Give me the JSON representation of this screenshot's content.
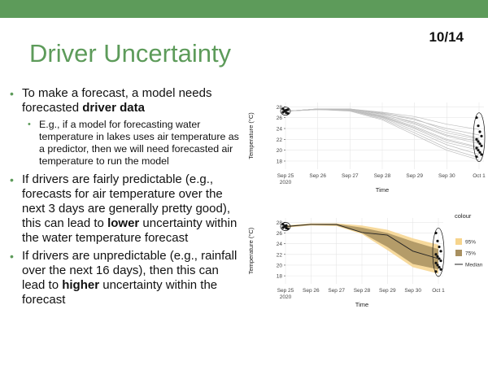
{
  "slide": {
    "number": "10/14",
    "title": "Driver Uncertainty",
    "accent_color": "#5d9b5a"
  },
  "bullets": {
    "b1": {
      "pre": "To make a forecast, a model needs forecasted ",
      "bold": "driver data",
      "post": ""
    },
    "b1a": "E.g., if a model for forecasting water temperature in lakes uses air temperature as a predictor, then we will need forecasted air temperature to run the model",
    "b2": {
      "pre": "If drivers are fairly predictable (e.g., forecasts for air temperature over the next 3 days are generally pretty good), this can lead to ",
      "bold": "lower",
      "post": " uncertainty within the water temperature forecast"
    },
    "b3": {
      "pre": "If drivers are unpredictable (e.g., rainfall over the next 16 days), then this can lead to ",
      "bold": "higher",
      "post": " uncertainty within the forecast"
    }
  },
  "chart_data": [
    {
      "type": "line",
      "description_series": "ensemble",
      "x_tick_labels": [
        "Sep 25",
        "Sep 26",
        "Sep 27",
        "Sep 28",
        "Sep 29",
        "Sep 30",
        "Oct 1"
      ],
      "x_year_label": "2020",
      "xlabel": "Time",
      "ylabel": "Temperature (°C)",
      "y_ticks": [
        18,
        20,
        22,
        24,
        26,
        28
      ],
      "ylim": [
        16.5,
        28.8
      ],
      "x": [
        0,
        1,
        2,
        3,
        4,
        5,
        6
      ],
      "members": [
        [
          27.2,
          27.6,
          27.6,
          27.0,
          26.2,
          24.8,
          23.8
        ],
        [
          27.2,
          27.6,
          27.6,
          26.8,
          25.6,
          24.0,
          22.8
        ],
        [
          27.2,
          27.6,
          27.5,
          26.6,
          25.2,
          23.2,
          22.0
        ],
        [
          27.2,
          27.6,
          27.5,
          26.4,
          24.8,
          22.6,
          21.2
        ],
        [
          27.2,
          27.6,
          27.4,
          26.3,
          24.4,
          22.0,
          20.6
        ],
        [
          27.2,
          27.5,
          27.4,
          26.1,
          24.0,
          21.4,
          20.0
        ],
        [
          27.2,
          27.5,
          27.3,
          26.0,
          23.6,
          21.0,
          19.2
        ],
        [
          27.2,
          27.5,
          27.3,
          25.8,
          23.2,
          20.4,
          18.6
        ],
        [
          27.2,
          27.5,
          27.2,
          25.6,
          22.8,
          20.0,
          18.2
        ],
        [
          27.2,
          27.6,
          27.6,
          26.9,
          25.8,
          23.6,
          22.2
        ],
        [
          27.2,
          27.6,
          27.5,
          26.7,
          25.0,
          22.8,
          21.6
        ],
        [
          27.2,
          27.5,
          27.4,
          26.2,
          24.2,
          21.8,
          20.4
        ]
      ],
      "start_points": [
        27.0,
        27.2,
        27.4,
        26.8,
        27.6,
        27.3,
        26.9,
        27.5
      ],
      "end_points": [
        26.0,
        24.5,
        23.4,
        22.6,
        22.0,
        21.6,
        21.2,
        20.8,
        20.4,
        20.0,
        19.6,
        19.2,
        18.8
      ]
    },
    {
      "type": "area",
      "x_tick_labels": [
        "Sep 25",
        "Sep 26",
        "Sep 27",
        "Sep 28",
        "Sep 29",
        "Sep 30",
        "Oct 1"
      ],
      "x_year_label": "2020",
      "xlabel": "Time",
      "ylabel": "Temperature (°C)",
      "y_ticks": [
        18,
        20,
        22,
        24,
        26,
        28
      ],
      "ylim": [
        16.5,
        28.8
      ],
      "x": [
        0,
        1,
        2,
        3,
        4,
        5,
        6
      ],
      "legend_title": "colour",
      "legend_position": "right",
      "series": [
        {
          "name": "95%",
          "color": "#f6d48c",
          "lower": [
            27.0,
            27.4,
            27.3,
            25.8,
            22.8,
            19.6,
            18.4
          ],
          "upper": [
            27.4,
            27.8,
            27.8,
            27.4,
            26.6,
            25.0,
            23.8
          ]
        },
        {
          "name": "75%",
          "color": "#a89060",
          "lower": [
            27.1,
            27.5,
            27.4,
            26.0,
            23.4,
            20.2,
            19.2
          ],
          "upper": [
            27.3,
            27.7,
            27.7,
            27.0,
            26.0,
            24.4,
            23.0
          ]
        },
        {
          "name": "Median",
          "color": "#222222",
          "values": [
            27.2,
            27.6,
            27.6,
            26.1,
            25.6,
            22.6,
            21.2
          ]
        }
      ],
      "start_points": [
        27.0,
        27.2,
        27.4,
        26.8,
        27.6,
        27.3,
        26.9
      ],
      "end_points": [
        26.0,
        24.5,
        23.4,
        22.6,
        22.0,
        21.6,
        21.2,
        20.8,
        20.4,
        20.0,
        19.6,
        19.2,
        18.8
      ]
    }
  ]
}
